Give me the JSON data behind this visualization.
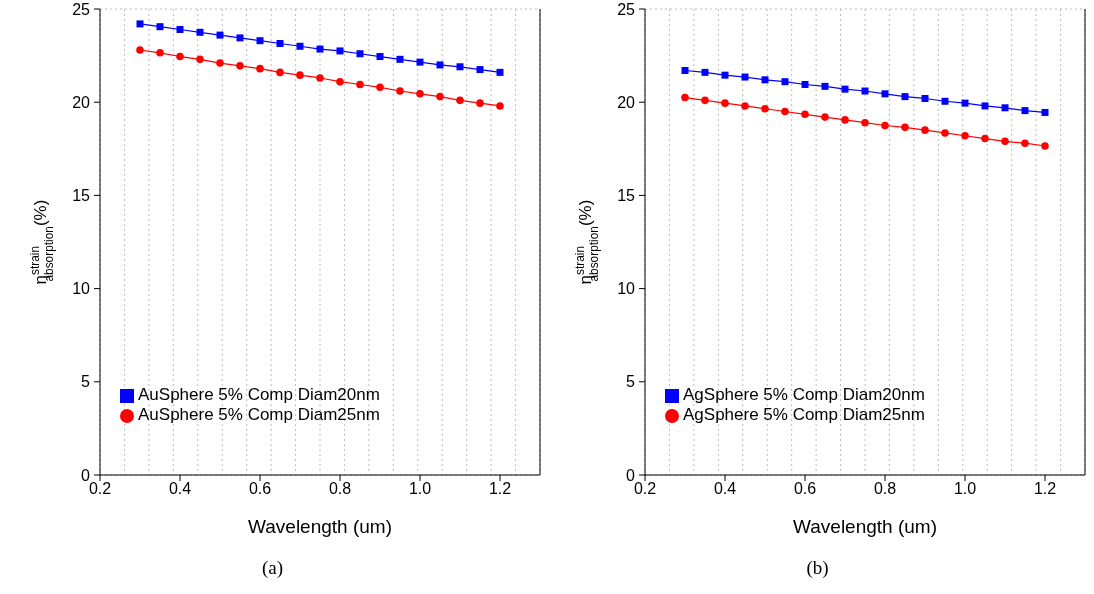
{
  "chart_data": [
    {
      "type": "line",
      "xlabel": "Wavelength (um)",
      "ylabel": "η$^{strain}$$_{absorption}$(%)",
      "annotations": [
        "(a)"
      ],
      "x": [
        0.3,
        0.35,
        0.4,
        0.45,
        0.5,
        0.55,
        0.6,
        0.65,
        0.7,
        0.75,
        0.8,
        0.85,
        0.9,
        0.95,
        1.0,
        1.05,
        1.1,
        1.15,
        1.2
      ],
      "series": [
        {
          "name": "AuSphere 5% Comp Diam20nm",
          "color": "#0000ff",
          "marker": "square",
          "values": [
            24.2,
            24.05,
            23.9,
            23.75,
            23.6,
            23.45,
            23.3,
            23.15,
            23.0,
            22.85,
            22.75,
            22.6,
            22.45,
            22.3,
            22.15,
            22.0,
            21.9,
            21.75,
            21.6
          ]
        },
        {
          "name": "AuSphere 5% Comp Diam25nm",
          "color": "#ff0000",
          "marker": "circle",
          "values": [
            22.8,
            22.65,
            22.45,
            22.3,
            22.1,
            21.95,
            21.8,
            21.6,
            21.45,
            21.3,
            21.1,
            20.95,
            20.8,
            20.6,
            20.45,
            20.3,
            20.1,
            19.95,
            19.8
          ]
        }
      ],
      "xlim": [
        0.2,
        1.3
      ],
      "xticks": [
        0.2,
        0.4,
        0.6,
        0.8,
        {
          "value": 1,
          "label": "1.0"
        },
        1.2
      ],
      "ylim": [
        0,
        25
      ],
      "yticks": [
        0,
        5,
        10,
        15,
        20,
        25
      ],
      "grid": true,
      "legend": "bottom left"
    },
    {
      "type": "line",
      "xlabel": "Wavelength (um)",
      "ylabel": "η$^{strain}$$_{absorption}$(%)",
      "annotations": [
        "(b)"
      ],
      "x": [
        0.3,
        0.35,
        0.4,
        0.45,
        0.5,
        0.55,
        0.6,
        0.65,
        0.7,
        0.75,
        0.8,
        0.85,
        0.9,
        0.95,
        1.0,
        1.05,
        1.1,
        1.15,
        1.2
      ],
      "series": [
        {
          "name": "AgSphere 5% Comp Diam20nm",
          "color": "#0000ff",
          "marker": "square",
          "values": [
            21.7,
            21.6,
            21.45,
            21.35,
            21.2,
            21.1,
            20.95,
            20.85,
            20.7,
            20.6,
            20.45,
            20.3,
            20.2,
            20.05,
            19.95,
            19.8,
            19.7,
            19.55,
            19.45
          ]
        },
        {
          "name": "AgSphere 5% Comp Diam25nm",
          "color": "#ff0000",
          "marker": "circle",
          "values": [
            20.25,
            20.1,
            19.95,
            19.8,
            19.65,
            19.5,
            19.35,
            19.2,
            19.05,
            18.9,
            18.75,
            18.65,
            18.5,
            18.35,
            18.2,
            18.05,
            17.9,
            17.8,
            17.65
          ]
        }
      ],
      "xlim": [
        0.2,
        1.3
      ],
      "xticks": [
        0.2,
        0.4,
        0.6,
        0.8,
        {
          "value": 1,
          "label": "1.0"
        },
        1.2
      ],
      "ylim": [
        0,
        25
      ],
      "yticks": [
        0,
        5,
        10,
        15,
        20,
        25
      ],
      "grid": true,
      "legend": "bottom left"
    }
  ]
}
